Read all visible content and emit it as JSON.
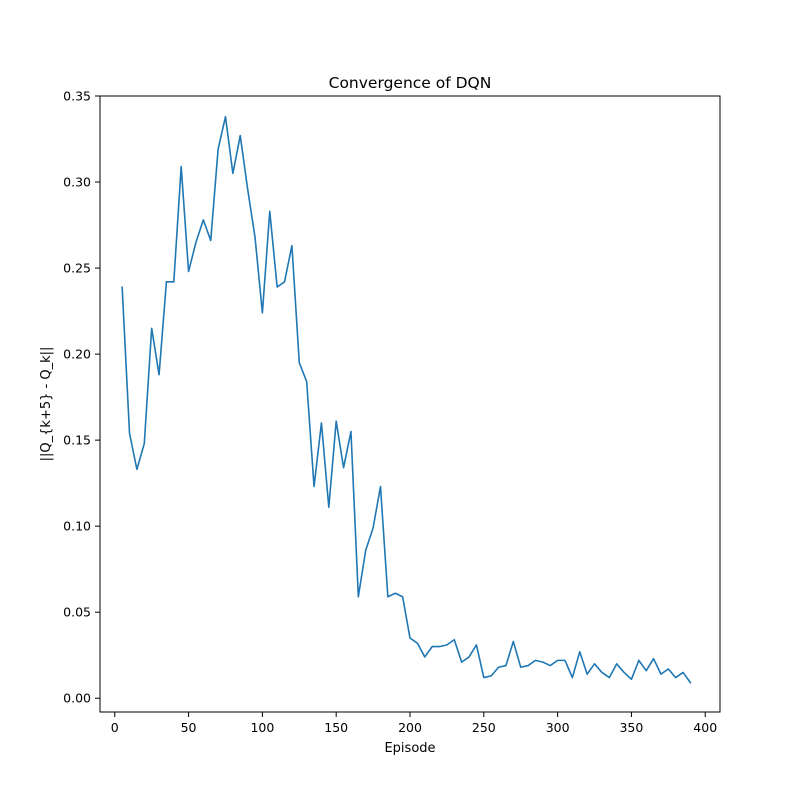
{
  "chart_data": {
    "type": "line",
    "title": "Convergence of DQN",
    "xlabel": "Episode",
    "ylabel": "||Q_{k+5} - Q_k||",
    "xlim": [
      -10,
      410
    ],
    "ylim": [
      -0.008,
      0.35
    ],
    "xticks": [
      0,
      50,
      100,
      150,
      200,
      250,
      300,
      350,
      400
    ],
    "yticks": [
      0.0,
      0.05,
      0.1,
      0.15,
      0.2,
      0.25,
      0.3,
      0.35
    ],
    "ytick_labels": [
      "0.00",
      "0.05",
      "0.10",
      "0.15",
      "0.20",
      "0.25",
      "0.30",
      "0.35"
    ],
    "grid": false,
    "series": [
      {
        "color": "#1f77b4",
        "x": [
          5,
          10,
          15,
          20,
          25,
          30,
          35,
          40,
          45,
          50,
          55,
          60,
          65,
          70,
          75,
          80,
          85,
          90,
          95,
          100,
          105,
          110,
          115,
          120,
          125,
          130,
          135,
          140,
          145,
          150,
          155,
          160,
          165,
          170,
          175,
          180,
          185,
          190,
          195,
          200,
          205,
          210,
          215,
          220,
          225,
          230,
          235,
          240,
          245,
          250,
          255,
          260,
          265,
          270,
          275,
          280,
          285,
          290,
          295,
          300,
          305,
          310,
          315,
          320,
          325,
          330,
          335,
          340,
          345,
          350,
          355,
          360,
          365,
          370,
          375,
          380,
          385,
          390
        ],
        "y": [
          0.239,
          0.154,
          0.133,
          0.148,
          0.215,
          0.188,
          0.242,
          0.242,
          0.309,
          0.248,
          0.265,
          0.278,
          0.266,
          0.319,
          0.338,
          0.305,
          0.327,
          0.296,
          0.268,
          0.224,
          0.283,
          0.239,
          0.242,
          0.263,
          0.195,
          0.184,
          0.123,
          0.16,
          0.111,
          0.161,
          0.134,
          0.155,
          0.059,
          0.086,
          0.099,
          0.123,
          0.059,
          0.061,
          0.059,
          0.035,
          0.032,
          0.024,
          0.03,
          0.03,
          0.031,
          0.034,
          0.021,
          0.024,
          0.031,
          0.012,
          0.013,
          0.018,
          0.019,
          0.033,
          0.018,
          0.019,
          0.022,
          0.021,
          0.019,
          0.022,
          0.022,
          0.012,
          0.027,
          0.014,
          0.02,
          0.015,
          0.012,
          0.02,
          0.015,
          0.011,
          0.022,
          0.016,
          0.023,
          0.014,
          0.017,
          0.012,
          0.015,
          0.009
        ]
      }
    ]
  }
}
